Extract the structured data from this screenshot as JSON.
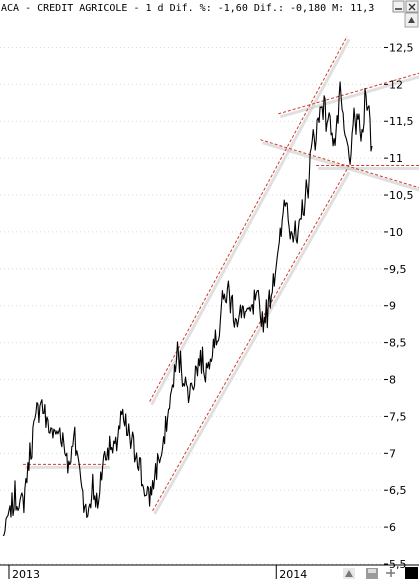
{
  "header": {
    "title": "ACA - CREDIT AGRICOLE -  1 d Dif. %: -1,60 Dif.: -0,180 M: 11,3"
  },
  "icons": {
    "minimize": "minimize-icon",
    "close": "close-icon",
    "scroll_up": "scroll-up-icon",
    "toolbar": [
      "chart-tool-icon",
      "save-icon",
      "pin-icon",
      "color-square-icon"
    ]
  },
  "colors": {
    "price": "#000000",
    "trendline": "#d23b2b",
    "shadow": "#c8c8c8",
    "background": "#ffffff"
  },
  "chart_data": {
    "type": "line",
    "title": "ACA - CREDIT AGRICOLE -  1 d Dif. %: -1,60 Dif.: -0,180 M: 11,3",
    "xlabel": "",
    "ylabel": "",
    "ylim": [
      5.5,
      12.75
    ],
    "grid": true,
    "y_ticks": [
      {
        "value": 12.5,
        "label": "12,5"
      },
      {
        "value": 12,
        "label": "12"
      },
      {
        "value": 11.5,
        "label": "11,5"
      },
      {
        "value": 11,
        "label": "11"
      },
      {
        "value": 10.5,
        "label": "10,5"
      },
      {
        "value": 10,
        "label": "10"
      },
      {
        "value": 9.5,
        "label": "9,5"
      },
      {
        "value": 9,
        "label": "9"
      },
      {
        "value": 8.5,
        "label": "8,5"
      },
      {
        "value": 8,
        "label": "8"
      },
      {
        "value": 7.5,
        "label": "7,5"
      },
      {
        "value": 7,
        "label": "7"
      },
      {
        "value": 6.5,
        "label": "6,5"
      },
      {
        "value": 6,
        "label": "6"
      },
      {
        "value": 5.5,
        "label": "5,5"
      }
    ],
    "x_ticks": [
      {
        "index": 6,
        "label": "2013"
      },
      {
        "index": 274,
        "label": "2014"
      }
    ],
    "series": [
      {
        "anchors": [
          [
            0,
            5.85
          ],
          [
            5,
            6.1
          ],
          [
            12,
            6.4
          ],
          [
            20,
            6.3
          ],
          [
            26,
            6.9
          ],
          [
            32,
            7.4
          ],
          [
            38,
            7.75
          ],
          [
            44,
            7.4
          ],
          [
            52,
            7.25
          ],
          [
            58,
            7.3
          ],
          [
            66,
            6.85
          ],
          [
            72,
            7.2
          ],
          [
            78,
            6.7
          ],
          [
            84,
            6.1
          ],
          [
            90,
            6.55
          ],
          [
            95,
            6.25
          ],
          [
            100,
            6.9
          ],
          [
            106,
            7.1
          ],
          [
            112,
            7.0
          ],
          [
            118,
            7.5
          ],
          [
            124,
            7.3
          ],
          [
            130,
            7.1
          ],
          [
            136,
            6.95
          ],
          [
            140,
            6.6
          ],
          [
            145,
            6.35
          ],
          [
            150,
            6.55
          ],
          [
            155,
            6.9
          ],
          [
            160,
            7.0
          ],
          [
            165,
            7.5
          ],
          [
            170,
            7.9
          ],
          [
            175,
            8.35
          ],
          [
            180,
            8.1
          ],
          [
            186,
            7.8
          ],
          [
            192,
            8.05
          ],
          [
            198,
            8.3
          ],
          [
            204,
            8.1
          ],
          [
            210,
            8.5
          ],
          [
            216,
            8.6
          ],
          [
            220,
            9.05
          ],
          [
            226,
            9.2
          ],
          [
            232,
            8.9
          ],
          [
            236,
            8.8
          ],
          [
            242,
            8.95
          ],
          [
            248,
            8.85
          ],
          [
            254,
            9.1
          ],
          [
            260,
            8.8
          ],
          [
            266,
            8.95
          ],
          [
            270,
            9.3
          ],
          [
            274,
            9.6
          ],
          [
            278,
            9.85
          ],
          [
            283,
            10.5
          ],
          [
            288,
            10.1
          ],
          [
            292,
            9.95
          ],
          [
            296,
            9.85
          ],
          [
            300,
            10.3
          ],
          [
            305,
            10.55
          ],
          [
            310,
            11.2
          ],
          [
            315,
            11.4
          ],
          [
            320,
            11.8
          ],
          [
            324,
            11.55
          ],
          [
            328,
            11.5
          ],
          [
            333,
            11.2
          ],
          [
            338,
            11.85
          ],
          [
            343,
            11.25
          ],
          [
            348,
            11.0
          ],
          [
            352,
            11.45
          ],
          [
            356,
            11.55
          ],
          [
            360,
            11.2
          ],
          [
            364,
            12.0
          ],
          [
            368,
            11.45
          ],
          [
            370,
            11.1
          ]
        ],
        "count": 371
      }
    ],
    "trendlines": [
      {
        "from": [
          147,
          7.7
        ],
        "to": [
          345,
          12.65
        ]
      },
      {
        "from": [
          150,
          6.22
        ],
        "to": [
          345,
          10.85
        ]
      },
      {
        "from": [
          20,
          6.85
        ],
        "to": [
          105,
          6.85
        ]
      },
      {
        "from": [
          276,
          11.6
        ],
        "to": [
          419,
          12.15
        ]
      },
      {
        "from": [
          258,
          11.25
        ],
        "to": [
          419,
          10.6
        ]
      },
      {
        "from": [
          314,
          10.9
        ],
        "to": [
          419,
          10.9
        ]
      }
    ]
  }
}
